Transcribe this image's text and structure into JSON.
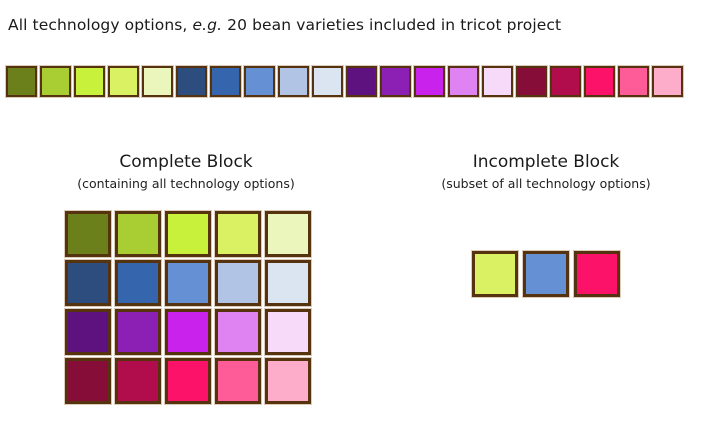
{
  "title": {
    "prefix": "All technology options, ",
    "emphasis": "e.g.",
    "suffix": " 20 bean varieties included in tricot project"
  },
  "palette": {
    "border_color": "#55330f",
    "colors": [
      "#6b7f1a",
      "#a9ce33",
      "#c7f13a",
      "#daf163",
      "#ebf6bd",
      "#2c4d7e",
      "#3566ad",
      "#6590d4",
      "#b1c4e6",
      "#dbe5f1",
      "#5e1280",
      "#8c1fb4",
      "#c822ec",
      "#e083f2",
      "#f7d9f9",
      "#870d39",
      "#b10d4c",
      "#fc1268",
      "#fd5c98",
      "#fdadca"
    ]
  },
  "complete_block": {
    "heading": "Complete Block",
    "subheading": "(containing all technology options)",
    "columns": 5,
    "rows": 4
  },
  "incomplete_block": {
    "heading": "Incomplete Block",
    "subheading": "(subset of all technology options)",
    "colors": [
      "#daf163",
      "#6590d4",
      "#fc1268"
    ]
  }
}
